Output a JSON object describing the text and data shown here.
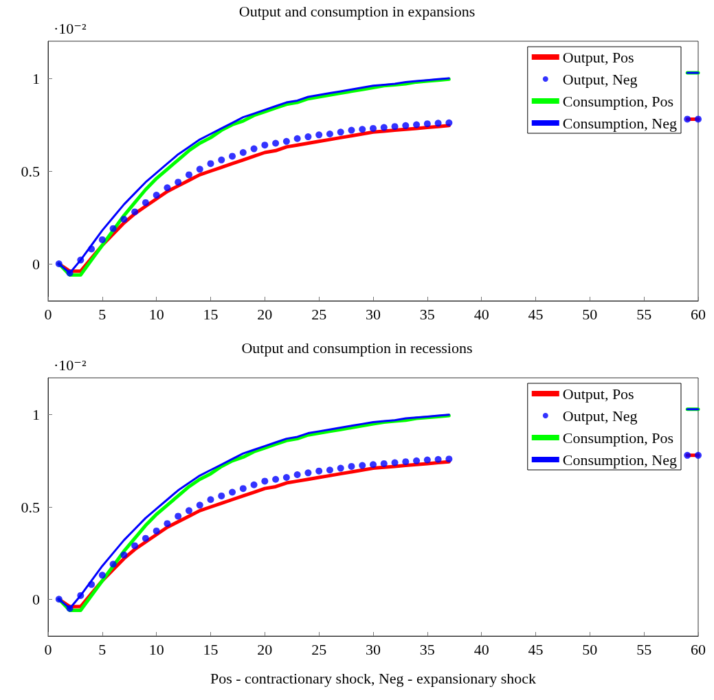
{
  "chart_data": [
    {
      "type": "line",
      "title": "Output and consumption in expansions",
      "annotations": [
        "·10⁻²"
      ],
      "x": [
        1,
        2,
        3,
        4,
        5,
        6,
        7,
        8,
        9,
        10,
        11,
        12,
        13,
        14,
        15,
        16,
        17,
        18,
        19,
        20,
        21,
        22,
        23,
        24,
        25,
        26,
        27,
        28,
        29,
        30,
        31,
        32,
        33,
        34,
        35,
        36,
        37,
        38,
        39,
        40,
        41,
        42,
        43,
        44,
        45,
        46,
        47,
        48,
        49,
        50,
        51,
        52,
        53,
        54,
        55,
        56,
        57,
        58,
        59,
        60
      ],
      "series": [
        {
          "name": "Output, Pos",
          "color": "#ff0000",
          "values": [
            0,
            -0.04,
            -0.04,
            0.03,
            0.1,
            0.16,
            0.22,
            0.27,
            0.31,
            0.35,
            0.39,
            0.42,
            0.45,
            0.48,
            0.5,
            0.52,
            0.54,
            0.56,
            0.58,
            0.6,
            0.61,
            0.63,
            0.64,
            0.65,
            0.66,
            0.67,
            0.68,
            0.69,
            0.7,
            0.71,
            0.715,
            0.72,
            0.725,
            0.73,
            0.735,
            0.74,
            0.745,
            null,
            null,
            null,
            null,
            null,
            null,
            null,
            null,
            null,
            null,
            null,
            null,
            null,
            null,
            null,
            null,
            null,
            null,
            null,
            null,
            null,
            0.78,
            0.78
          ]
        },
        {
          "name": "Output, Neg",
          "color": "#0000ff",
          "type": "scatter",
          "marker": "circle",
          "values": [
            0,
            -0.05,
            0.02,
            0.08,
            0.13,
            0.19,
            0.24,
            0.28,
            0.33,
            0.37,
            0.41,
            0.44,
            0.48,
            0.51,
            0.54,
            0.56,
            0.58,
            0.6,
            0.62,
            0.64,
            0.65,
            0.66,
            0.675,
            0.685,
            0.695,
            0.7,
            0.71,
            0.72,
            0.725,
            0.73,
            0.735,
            0.74,
            0.745,
            0.75,
            0.755,
            0.758,
            0.76,
            null,
            null,
            null,
            null,
            null,
            null,
            null,
            null,
            null,
            null,
            null,
            null,
            null,
            null,
            null,
            null,
            null,
            null,
            null,
            null,
            null,
            0.78,
            0.78
          ]
        },
        {
          "name": "Consumption, Pos",
          "color": "#00ff00",
          "values": [
            0,
            -0.06,
            -0.06,
            0.02,
            0.1,
            0.18,
            0.26,
            0.33,
            0.4,
            0.46,
            0.51,
            0.56,
            0.61,
            0.65,
            0.68,
            0.72,
            0.75,
            0.77,
            0.8,
            0.82,
            0.84,
            0.86,
            0.87,
            0.89,
            0.9,
            0.91,
            0.92,
            0.93,
            0.94,
            0.95,
            0.96,
            0.965,
            0.97,
            0.98,
            0.985,
            0.99,
            0.995,
            null,
            null,
            null,
            null,
            null,
            null,
            null,
            null,
            null,
            null,
            null,
            null,
            null,
            null,
            null,
            null,
            null,
            null,
            null,
            null,
            null,
            1.03,
            1.03
          ]
        },
        {
          "name": "Consumption, Neg",
          "color": "#0000ff",
          "values": [
            0,
            -0.05,
            0.02,
            0.1,
            0.18,
            0.25,
            0.32,
            0.38,
            0.44,
            0.49,
            0.54,
            0.59,
            0.63,
            0.67,
            0.7,
            0.73,
            0.76,
            0.79,
            0.81,
            0.83,
            0.85,
            0.87,
            0.88,
            0.9,
            0.91,
            0.92,
            0.93,
            0.94,
            0.95,
            0.96,
            0.965,
            0.97,
            0.98,
            0.985,
            0.99,
            0.995,
            1.0,
            null,
            null,
            null,
            null,
            null,
            null,
            null,
            null,
            null,
            null,
            null,
            null,
            null,
            null,
            null,
            null,
            null,
            null,
            null,
            null,
            null,
            1.03,
            1.03
          ]
        }
      ],
      "xlim": [
        0,
        60
      ],
      "xticks": [
        0,
        5,
        10,
        15,
        20,
        25,
        30,
        35,
        40,
        45,
        50,
        55,
        60
      ],
      "ylim": [
        -0.2,
        1.2
      ],
      "yticks": [
        0,
        0.5,
        1
      ],
      "grid": false,
      "legend": "top right",
      "marker": "none",
      "line_style": "solid"
    },
    {
      "type": "line",
      "title": "Output and consumption in recessions",
      "xlabel": "Pos - contractionary shock, Neg - expansionary shock",
      "annotations": [
        "·10⁻²"
      ],
      "x": [
        1,
        2,
        3,
        4,
        5,
        6,
        7,
        8,
        9,
        10,
        11,
        12,
        13,
        14,
        15,
        16,
        17,
        18,
        19,
        20,
        21,
        22,
        23,
        24,
        25,
        26,
        27,
        28,
        29,
        30,
        31,
        32,
        33,
        34,
        35,
        36,
        37,
        38,
        39,
        40,
        41,
        42,
        43,
        44,
        45,
        46,
        47,
        48,
        49,
        50,
        51,
        52,
        53,
        54,
        55,
        56,
        57,
        58,
        59,
        60
      ],
      "series": [
        {
          "name": "Output, Pos",
          "color": "#ff0000",
          "values": [
            0,
            -0.04,
            -0.04,
            0.03,
            0.1,
            0.16,
            0.22,
            0.27,
            0.31,
            0.35,
            0.39,
            0.42,
            0.45,
            0.48,
            0.5,
            0.52,
            0.54,
            0.56,
            0.58,
            0.6,
            0.61,
            0.63,
            0.64,
            0.65,
            0.66,
            0.67,
            0.68,
            0.69,
            0.7,
            0.71,
            0.715,
            0.72,
            0.725,
            0.73,
            0.735,
            0.74,
            0.745,
            null,
            null,
            null,
            null,
            null,
            null,
            null,
            null,
            null,
            null,
            null,
            null,
            null,
            null,
            null,
            null,
            null,
            null,
            null,
            null,
            null,
            0.78,
            0.78
          ]
        },
        {
          "name": "Output, Neg",
          "color": "#0000ff",
          "type": "scatter",
          "marker": "circle",
          "values": [
            0,
            -0.05,
            0.02,
            0.08,
            0.13,
            0.19,
            0.24,
            0.29,
            0.33,
            0.37,
            0.41,
            0.45,
            0.48,
            0.51,
            0.54,
            0.56,
            0.58,
            0.6,
            0.62,
            0.64,
            0.65,
            0.66,
            0.675,
            0.685,
            0.695,
            0.7,
            0.71,
            0.72,
            0.725,
            0.73,
            0.735,
            0.74,
            0.745,
            0.75,
            0.755,
            0.758,
            0.76,
            null,
            null,
            null,
            null,
            null,
            null,
            null,
            null,
            null,
            null,
            null,
            null,
            null,
            null,
            null,
            null,
            null,
            null,
            null,
            null,
            null,
            0.78,
            0.78
          ]
        },
        {
          "name": "Consumption, Pos",
          "color": "#00ff00",
          "values": [
            0,
            -0.06,
            -0.06,
            0.02,
            0.1,
            0.18,
            0.26,
            0.33,
            0.4,
            0.46,
            0.51,
            0.56,
            0.61,
            0.65,
            0.68,
            0.72,
            0.75,
            0.77,
            0.8,
            0.82,
            0.84,
            0.86,
            0.87,
            0.89,
            0.9,
            0.91,
            0.92,
            0.93,
            0.94,
            0.95,
            0.96,
            0.965,
            0.97,
            0.98,
            0.985,
            0.99,
            0.995,
            null,
            null,
            null,
            null,
            null,
            null,
            null,
            null,
            null,
            null,
            null,
            null,
            null,
            null,
            null,
            null,
            null,
            null,
            null,
            null,
            null,
            1.03,
            1.03
          ]
        },
        {
          "name": "Consumption, Neg",
          "color": "#0000ff",
          "values": [
            0,
            -0.05,
            0.02,
            0.1,
            0.18,
            0.25,
            0.32,
            0.38,
            0.44,
            0.49,
            0.54,
            0.59,
            0.63,
            0.67,
            0.7,
            0.73,
            0.76,
            0.79,
            0.81,
            0.83,
            0.85,
            0.87,
            0.88,
            0.9,
            0.91,
            0.92,
            0.93,
            0.94,
            0.95,
            0.96,
            0.965,
            0.97,
            0.98,
            0.985,
            0.99,
            0.995,
            1.0,
            null,
            null,
            null,
            null,
            null,
            null,
            null,
            null,
            null,
            null,
            null,
            null,
            null,
            null,
            null,
            null,
            null,
            null,
            null,
            null,
            null,
            1.03,
            1.03
          ]
        }
      ],
      "xlim": [
        0,
        60
      ],
      "xticks": [
        0,
        5,
        10,
        15,
        20,
        25,
        30,
        35,
        40,
        45,
        50,
        55,
        60
      ],
      "ylim": [
        -0.2,
        1.2
      ],
      "yticks": [
        0,
        0.5,
        1
      ],
      "grid": false,
      "legend": "top right",
      "marker": "none",
      "line_style": "solid"
    }
  ]
}
